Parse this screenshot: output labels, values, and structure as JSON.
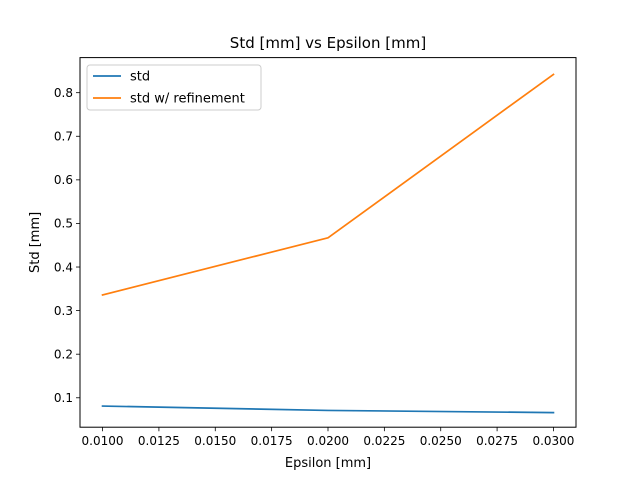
{
  "chart_data": {
    "type": "line",
    "title": "Std [mm] vs Epsilon [mm]",
    "xlabel": "Epsilon [mm]",
    "ylabel": "Std [mm]",
    "x": [
      0.01,
      0.02,
      0.03
    ],
    "xlim": [
      0.009,
      0.031
    ],
    "ylim": [
      0.0325,
      0.8805
    ],
    "xticks": [
      "0.0100",
      "0.0125",
      "0.0150",
      "0.0175",
      "0.0200",
      "0.0225",
      "0.0250",
      "0.0275",
      "0.0300"
    ],
    "yticks": [
      "0.1",
      "0.2",
      "0.3",
      "0.4",
      "0.5",
      "0.6",
      "0.7",
      "0.8"
    ],
    "grid": false,
    "legend_position": "top-left",
    "series": [
      {
        "name": "std",
        "color": "#1f77b4",
        "values": [
          0.081,
          0.071,
          0.066
        ]
      },
      {
        "name": "std w/ refinement",
        "color": "#ff7f0e",
        "values": [
          0.336,
          0.467,
          0.842
        ]
      }
    ]
  }
}
